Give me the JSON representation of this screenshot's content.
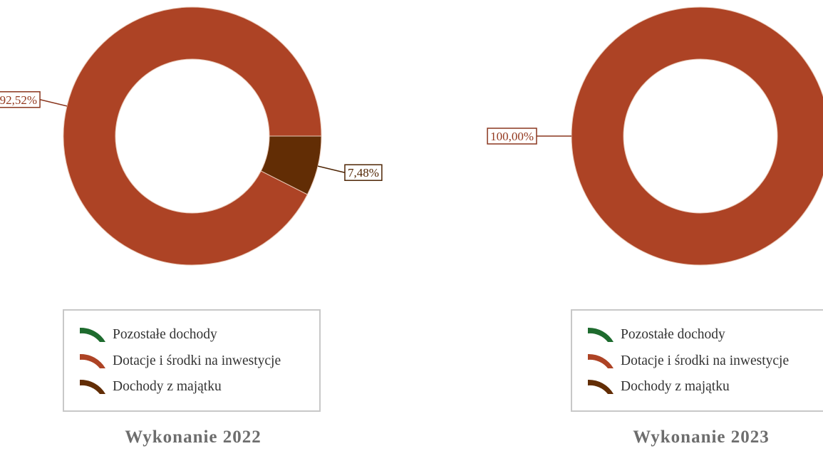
{
  "colors": {
    "Pozostałe dochody": "#1e6b2e",
    "Dotacje i środki na inwestycje": "#ad4325",
    "Dochody z majątku": "#622d05"
  },
  "legend": {
    "items": [
      {
        "label": "Pozostałe dochody",
        "icon": "arc-swatch-icon"
      },
      {
        "label": "Dotacje i środki na inwestycje",
        "icon": "arc-swatch-icon"
      },
      {
        "label": "Dochody z majątku",
        "icon": "arc-swatch-icon"
      }
    ]
  },
  "chart_data": [
    {
      "type": "pie",
      "title": "Wykonanie 2022",
      "categories": [
        "Pozostałe dochody",
        "Dotacje i środki na inwestycje",
        "Dochody z majątku"
      ],
      "values": [
        0,
        92.52,
        7.48
      ],
      "data_labels": [
        "",
        "92,52%",
        "7,48%"
      ],
      "donut": true,
      "legend_position": "bottom"
    },
    {
      "type": "pie",
      "title": "Wykonanie 2023",
      "categories": [
        "Pozostałe dochody",
        "Dotacje i środki na inwestycje",
        "Dochody z majątku"
      ],
      "values": [
        0,
        100.0,
        0
      ],
      "data_labels": [
        "",
        "100,00%",
        ""
      ],
      "donut": true,
      "legend_position": "bottom"
    }
  ]
}
